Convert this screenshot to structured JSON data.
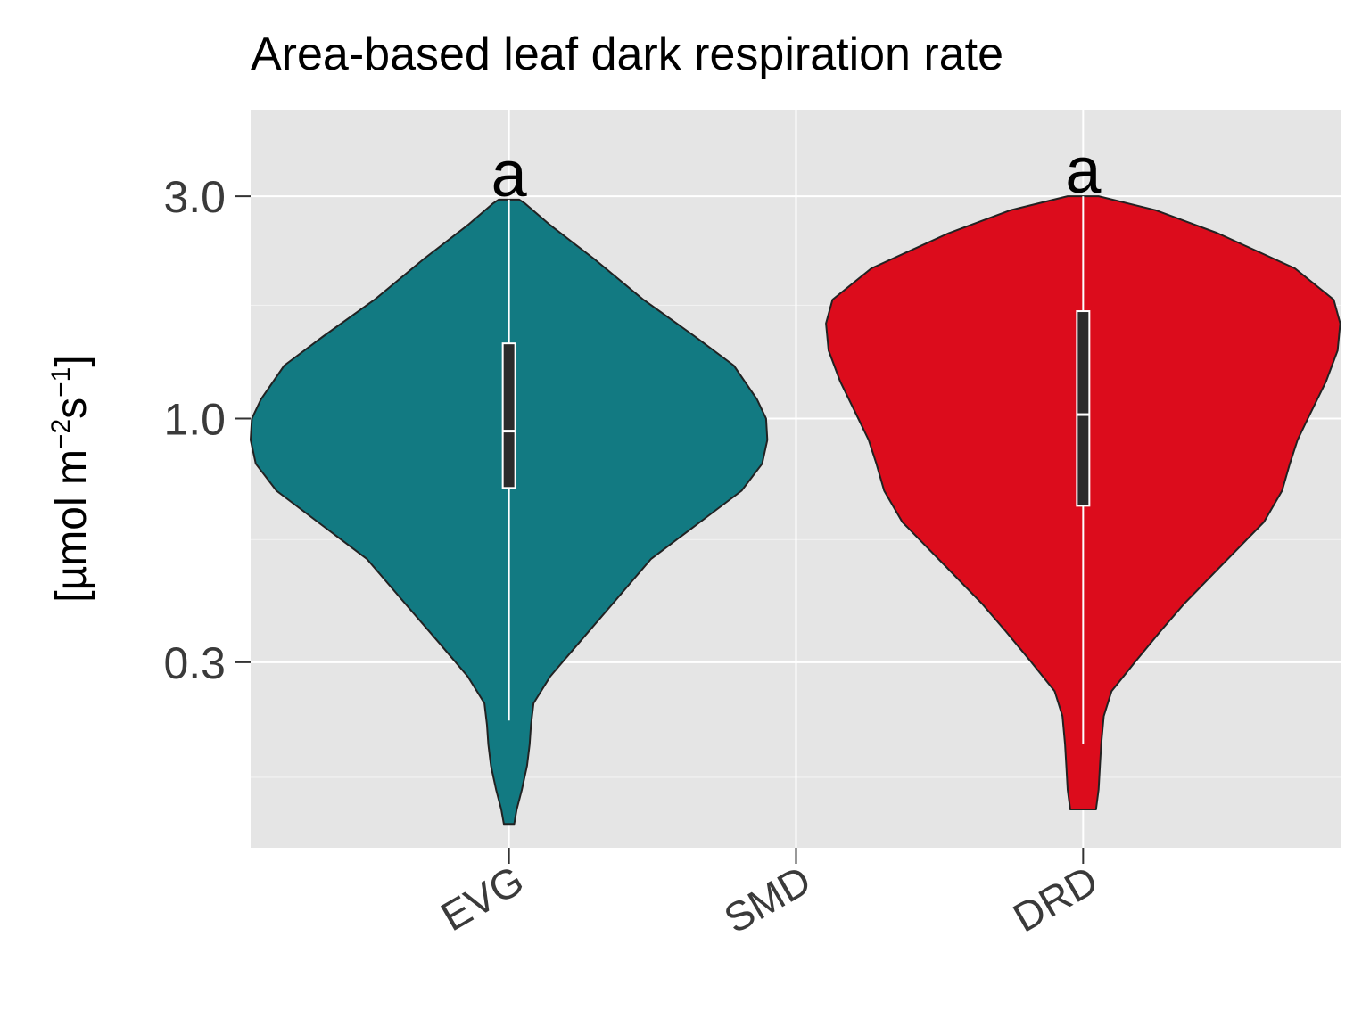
{
  "chart_data": {
    "type": "violin",
    "title": "Area-based leaf dark respiration rate",
    "ylabel": {
      "prefix": "[µmol m",
      "sup1": "−2",
      "mid": "s",
      "sup2": "−1",
      "suffix": "]"
    },
    "y_scale": "log",
    "ylim": [
      0.12,
      4.6
    ],
    "y_ticks": [
      {
        "value": 0.3,
        "label": "0.3"
      },
      {
        "value": 1.0,
        "label": "1.0"
      },
      {
        "value": 3.0,
        "label": "3.0"
      }
    ],
    "y_minor_gridlines": [
      0.17,
      0.55,
      1.75
    ],
    "categories": [
      "EVG",
      "SMD",
      "DRD"
    ],
    "grid": true,
    "panel_background": "#e5e5e5",
    "series": [
      {
        "category": "EVG",
        "color": "#127a82",
        "letter": "a",
        "box": {
          "q1": 0.71,
          "median": 0.94,
          "q3": 1.45,
          "whisker_low": 0.225,
          "whisker_high": 2.95
        },
        "density": [
          [
            0.135,
            0.02
          ],
          [
            0.145,
            0.03
          ],
          [
            0.16,
            0.05
          ],
          [
            0.18,
            0.07
          ],
          [
            0.2,
            0.08
          ],
          [
            0.22,
            0.085
          ],
          [
            0.245,
            0.095
          ],
          [
            0.28,
            0.16
          ],
          [
            0.33,
            0.27
          ],
          [
            0.4,
            0.4
          ],
          [
            0.5,
            0.55
          ],
          [
            0.6,
            0.74
          ],
          [
            0.7,
            0.9
          ],
          [
            0.8,
            0.98
          ],
          [
            0.9,
            1.0
          ],
          [
            1.0,
            0.995
          ],
          [
            1.1,
            0.96
          ],
          [
            1.3,
            0.87
          ],
          [
            1.5,
            0.72
          ],
          [
            1.8,
            0.52
          ],
          [
            2.2,
            0.33
          ],
          [
            2.6,
            0.16
          ],
          [
            2.9,
            0.06
          ],
          [
            2.95,
            0.04
          ]
        ]
      },
      {
        "category": "DRD",
        "color": "#dc0c1c",
        "letter": "a",
        "box": {
          "q1": 0.65,
          "median": 1.02,
          "q3": 1.7,
          "whisker_low": 0.2,
          "whisker_high": 3.0
        },
        "density": [
          [
            0.145,
            0.05
          ],
          [
            0.16,
            0.06
          ],
          [
            0.18,
            0.065
          ],
          [
            0.2,
            0.07
          ],
          [
            0.23,
            0.08
          ],
          [
            0.26,
            0.11
          ],
          [
            0.3,
            0.2
          ],
          [
            0.35,
            0.3
          ],
          [
            0.4,
            0.39
          ],
          [
            0.5,
            0.56
          ],
          [
            0.6,
            0.7
          ],
          [
            0.7,
            0.77
          ],
          [
            0.8,
            0.8
          ],
          [
            0.9,
            0.83
          ],
          [
            1.0,
            0.87
          ],
          [
            1.2,
            0.94
          ],
          [
            1.4,
            0.985
          ],
          [
            1.6,
            0.995
          ],
          [
            1.8,
            0.97
          ],
          [
            2.1,
            0.82
          ],
          [
            2.5,
            0.52
          ],
          [
            2.8,
            0.28
          ],
          [
            3.0,
            0.06
          ]
        ]
      }
    ]
  }
}
